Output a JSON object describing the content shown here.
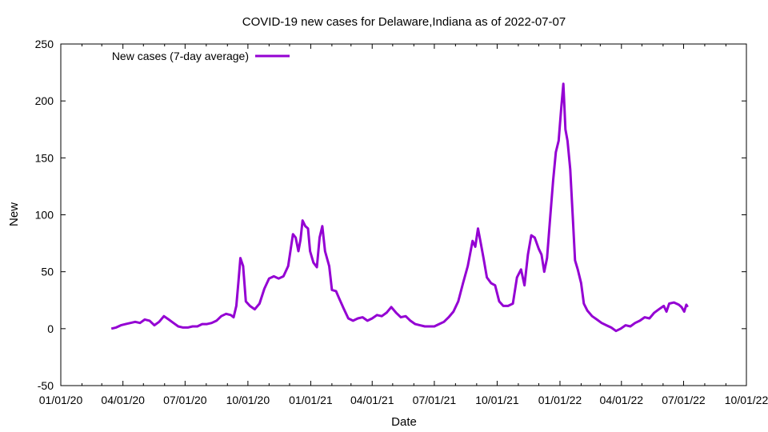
{
  "chart_data": {
    "type": "line",
    "title": "COVID-19 new cases for Delaware,Indiana as of 2022-07-07",
    "xlabel": "Date",
    "ylabel": "New",
    "xlim": [
      "2020-01-01",
      "2022-10-01"
    ],
    "ylim": [
      -50,
      250
    ],
    "xticks": [
      "01/01/20",
      "04/01/20",
      "07/01/20",
      "10/01/20",
      "01/01/21",
      "04/01/21",
      "07/01/21",
      "10/01/21",
      "01/01/22",
      "04/01/22",
      "07/01/22",
      "10/01/22"
    ],
    "yticks": [
      -50,
      0,
      50,
      100,
      150,
      200,
      250
    ],
    "grid": false,
    "legend_position": "top-left",
    "series": [
      {
        "name": "New cases (7-day average)",
        "color": "#9400d3",
        "points": [
          [
            "2020-03-15",
            0
          ],
          [
            "2020-03-22",
            1
          ],
          [
            "2020-03-29",
            3
          ],
          [
            "2020-04-05",
            4
          ],
          [
            "2020-04-12",
            5
          ],
          [
            "2020-04-19",
            6
          ],
          [
            "2020-04-26",
            5
          ],
          [
            "2020-05-03",
            8
          ],
          [
            "2020-05-10",
            7
          ],
          [
            "2020-05-17",
            3
          ],
          [
            "2020-05-24",
            6
          ],
          [
            "2020-05-31",
            11
          ],
          [
            "2020-06-07",
            8
          ],
          [
            "2020-06-14",
            5
          ],
          [
            "2020-06-21",
            2
          ],
          [
            "2020-06-28",
            1
          ],
          [
            "2020-07-05",
            1
          ],
          [
            "2020-07-12",
            2
          ],
          [
            "2020-07-19",
            2
          ],
          [
            "2020-07-26",
            4
          ],
          [
            "2020-08-02",
            4
          ],
          [
            "2020-08-09",
            5
          ],
          [
            "2020-08-16",
            7
          ],
          [
            "2020-08-23",
            11
          ],
          [
            "2020-08-30",
            13
          ],
          [
            "2020-09-06",
            12
          ],
          [
            "2020-09-10",
            10
          ],
          [
            "2020-09-14",
            20
          ],
          [
            "2020-09-17",
            40
          ],
          [
            "2020-09-20",
            62
          ],
          [
            "2020-09-24",
            55
          ],
          [
            "2020-09-28",
            24
          ],
          [
            "2020-10-04",
            20
          ],
          [
            "2020-10-11",
            17
          ],
          [
            "2020-10-18",
            22
          ],
          [
            "2020-10-25",
            35
          ],
          [
            "2020-11-01",
            44
          ],
          [
            "2020-11-08",
            46
          ],
          [
            "2020-11-15",
            44
          ],
          [
            "2020-11-22",
            46
          ],
          [
            "2020-11-29",
            55
          ],
          [
            "2020-12-06",
            83
          ],
          [
            "2020-12-10",
            80
          ],
          [
            "2020-12-14",
            68
          ],
          [
            "2020-12-17",
            78
          ],
          [
            "2020-12-20",
            95
          ],
          [
            "2020-12-24",
            90
          ],
          [
            "2020-12-28",
            88
          ],
          [
            "2020-12-31",
            68
          ],
          [
            "2021-01-05",
            58
          ],
          [
            "2021-01-10",
            54
          ],
          [
            "2021-01-14",
            80
          ],
          [
            "2021-01-18",
            90
          ],
          [
            "2021-01-22",
            68
          ],
          [
            "2021-01-28",
            55
          ],
          [
            "2021-02-01",
            34
          ],
          [
            "2021-02-07",
            33
          ],
          [
            "2021-02-12",
            26
          ],
          [
            "2021-02-18",
            18
          ],
          [
            "2021-02-25",
            9
          ],
          [
            "2021-03-04",
            7
          ],
          [
            "2021-03-11",
            9
          ],
          [
            "2021-03-18",
            10
          ],
          [
            "2021-03-25",
            7
          ],
          [
            "2021-04-01",
            9
          ],
          [
            "2021-04-08",
            12
          ],
          [
            "2021-04-15",
            11
          ],
          [
            "2021-04-22",
            14
          ],
          [
            "2021-04-29",
            19
          ],
          [
            "2021-05-06",
            14
          ],
          [
            "2021-05-13",
            10
          ],
          [
            "2021-05-20",
            11
          ],
          [
            "2021-05-27",
            7
          ],
          [
            "2021-06-03",
            4
          ],
          [
            "2021-06-10",
            3
          ],
          [
            "2021-06-17",
            2
          ],
          [
            "2021-06-24",
            2
          ],
          [
            "2021-07-01",
            2
          ],
          [
            "2021-07-08",
            4
          ],
          [
            "2021-07-15",
            6
          ],
          [
            "2021-07-22",
            10
          ],
          [
            "2021-07-29",
            15
          ],
          [
            "2021-08-05",
            24
          ],
          [
            "2021-08-12",
            40
          ],
          [
            "2021-08-19",
            55
          ],
          [
            "2021-08-26",
            77
          ],
          [
            "2021-08-30",
            72
          ],
          [
            "2021-09-03",
            88
          ],
          [
            "2021-09-07",
            75
          ],
          [
            "2021-09-11",
            62
          ],
          [
            "2021-09-16",
            45
          ],
          [
            "2021-09-22",
            40
          ],
          [
            "2021-09-28",
            38
          ],
          [
            "2021-10-04",
            24
          ],
          [
            "2021-10-10",
            20
          ],
          [
            "2021-10-17",
            20
          ],
          [
            "2021-10-24",
            22
          ],
          [
            "2021-10-30",
            45
          ],
          [
            "2021-11-05",
            52
          ],
          [
            "2021-11-10",
            38
          ],
          [
            "2021-11-15",
            65
          ],
          [
            "2021-11-20",
            82
          ],
          [
            "2021-11-25",
            80
          ],
          [
            "2021-12-01",
            70
          ],
          [
            "2021-12-05",
            65
          ],
          [
            "2021-12-09",
            50
          ],
          [
            "2021-12-13",
            62
          ],
          [
            "2021-12-18",
            100
          ],
          [
            "2021-12-22",
            130
          ],
          [
            "2021-12-26",
            155
          ],
          [
            "2021-12-30",
            165
          ],
          [
            "2022-01-03",
            195
          ],
          [
            "2022-01-06",
            215
          ],
          [
            "2022-01-09",
            175
          ],
          [
            "2022-01-12",
            165
          ],
          [
            "2022-01-16",
            140
          ],
          [
            "2022-01-20",
            95
          ],
          [
            "2022-01-23",
            60
          ],
          [
            "2022-01-27",
            52
          ],
          [
            "2022-02-01",
            40
          ],
          [
            "2022-02-05",
            22
          ],
          [
            "2022-02-10",
            16
          ],
          [
            "2022-02-17",
            11
          ],
          [
            "2022-02-24",
            8
          ],
          [
            "2022-03-03",
            5
          ],
          [
            "2022-03-10",
            3
          ],
          [
            "2022-03-17",
            1
          ],
          [
            "2022-03-24",
            -2
          ],
          [
            "2022-03-31",
            0
          ],
          [
            "2022-04-07",
            3
          ],
          [
            "2022-04-14",
            2
          ],
          [
            "2022-04-21",
            5
          ],
          [
            "2022-04-28",
            7
          ],
          [
            "2022-05-05",
            10
          ],
          [
            "2022-05-12",
            9
          ],
          [
            "2022-05-19",
            14
          ],
          [
            "2022-05-26",
            17
          ],
          [
            "2022-06-02",
            20
          ],
          [
            "2022-06-06",
            15
          ],
          [
            "2022-06-10",
            22
          ],
          [
            "2022-06-17",
            23
          ],
          [
            "2022-06-24",
            21
          ],
          [
            "2022-06-28",
            19
          ],
          [
            "2022-07-02",
            15
          ],
          [
            "2022-07-05",
            21
          ],
          [
            "2022-07-07",
            19
          ]
        ]
      }
    ]
  }
}
